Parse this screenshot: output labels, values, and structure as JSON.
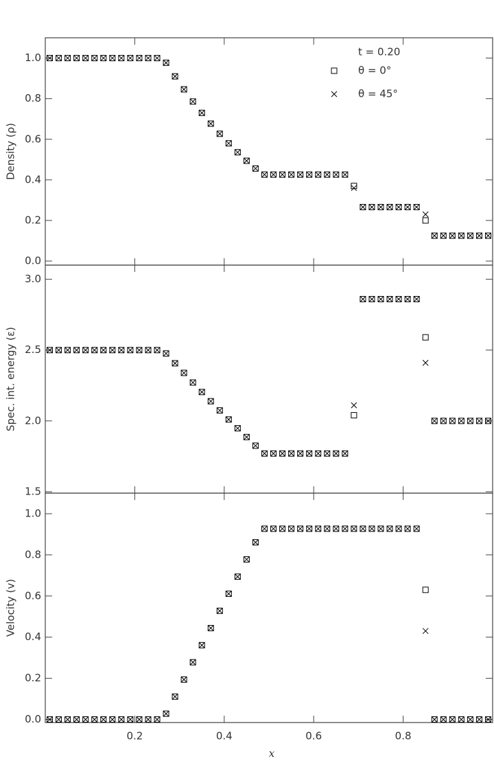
{
  "chart_data": [
    {
      "type": "scatter",
      "ylabel": "Density (ρ)",
      "annotation": "t = 0.20",
      "xlim": [
        0,
        1
      ],
      "xticks": [
        0.2,
        0.4,
        0.6,
        0.8
      ],
      "ylim": [
        -0.02,
        1.1
      ],
      "yticks": [
        {
          "value": 0,
          "label": "0.0"
        },
        0.2,
        0.4,
        0.6,
        0.8,
        {
          "value": 1,
          "label": "1.0"
        }
      ],
      "x": [
        0.01,
        0.03,
        0.05,
        0.07,
        0.09,
        0.11,
        0.13,
        0.15,
        0.17,
        0.19,
        0.21,
        0.23,
        0.25,
        0.27,
        0.29,
        0.31,
        0.33,
        0.35,
        0.37,
        0.39,
        0.41,
        0.43,
        0.45,
        0.47,
        0.49,
        0.51,
        0.53,
        0.55,
        0.57,
        0.59,
        0.61,
        0.63,
        0.65,
        0.67,
        0.69,
        0.71,
        0.73,
        0.75,
        0.77,
        0.79,
        0.81,
        0.83,
        0.85,
        0.87,
        0.89,
        0.91,
        0.93,
        0.95,
        0.97,
        0.99
      ],
      "series": [
        {
          "name": "θ = 0°",
          "color": "#000000",
          "marker": "square",
          "values": [
            1,
            1,
            1,
            1,
            1,
            1,
            1,
            1,
            1,
            1,
            1,
            1,
            1,
            0.977,
            0.91,
            0.846,
            0.786,
            0.73,
            0.677,
            0.627,
            0.58,
            0.536,
            0.494,
            0.456,
            0.426,
            0.426,
            0.426,
            0.426,
            0.426,
            0.426,
            0.426,
            0.426,
            0.426,
            0.426,
            0.37,
            0.266,
            0.266,
            0.266,
            0.266,
            0.266,
            0.266,
            0.266,
            0.2,
            0.125,
            0.125,
            0.125,
            0.125,
            0.125,
            0.125,
            0.125
          ]
        },
        {
          "name": "θ = 45°",
          "color": "#000000",
          "marker": "cross",
          "values": [
            1,
            1,
            1,
            1,
            1,
            1,
            1,
            1,
            1,
            1,
            1,
            1,
            1,
            0.977,
            0.91,
            0.846,
            0.786,
            0.73,
            0.677,
            0.627,
            0.58,
            0.536,
            0.494,
            0.456,
            0.426,
            0.426,
            0.426,
            0.426,
            0.426,
            0.426,
            0.426,
            0.426,
            0.426,
            0.426,
            0.36,
            0.266,
            0.266,
            0.266,
            0.266,
            0.266,
            0.266,
            0.266,
            0.23,
            0.125,
            0.125,
            0.125,
            0.125,
            0.125,
            0.125,
            0.125
          ]
        }
      ]
    },
    {
      "type": "scatter",
      "ylabel": "Spec. int. energy (ε)",
      "xlim": [
        0,
        1
      ],
      "xticks": [
        0.2,
        0.4,
        0.6,
        0.8
      ],
      "ylim": [
        1.49,
        3.1
      ],
      "yticks": [
        1.5,
        {
          "value": 2,
          "label": "2.0"
        },
        2.5,
        {
          "value": 3,
          "label": "3.0"
        }
      ],
      "x": [
        0.01,
        0.03,
        0.05,
        0.07,
        0.09,
        0.11,
        0.13,
        0.15,
        0.17,
        0.19,
        0.21,
        0.23,
        0.25,
        0.27,
        0.29,
        0.31,
        0.33,
        0.35,
        0.37,
        0.39,
        0.41,
        0.43,
        0.45,
        0.47,
        0.49,
        0.51,
        0.53,
        0.55,
        0.57,
        0.59,
        0.61,
        0.63,
        0.65,
        0.67,
        0.69,
        0.71,
        0.73,
        0.75,
        0.77,
        0.79,
        0.81,
        0.83,
        0.85,
        0.87,
        0.89,
        0.91,
        0.93,
        0.95,
        0.97,
        0.99
      ],
      "series": [
        {
          "name": "θ = 0°",
          "color": "#000000",
          "marker": "square",
          "values": [
            2.5,
            2.5,
            2.5,
            2.5,
            2.5,
            2.5,
            2.5,
            2.5,
            2.5,
            2.5,
            2.5,
            2.5,
            2.5,
            2.476,
            2.407,
            2.339,
            2.271,
            2.204,
            2.139,
            2.074,
            2.01,
            1.948,
            1.886,
            1.825,
            1.77,
            1.77,
            1.77,
            1.77,
            1.77,
            1.77,
            1.77,
            1.77,
            1.77,
            1.77,
            2.04,
            2.86,
            2.86,
            2.86,
            2.86,
            2.86,
            2.86,
            2.86,
            2.59,
            2.0,
            2.0,
            2.0,
            2.0,
            2.0,
            2.0,
            2.0
          ]
        },
        {
          "name": "θ = 45°",
          "color": "#000000",
          "marker": "cross",
          "values": [
            2.5,
            2.5,
            2.5,
            2.5,
            2.5,
            2.5,
            2.5,
            2.5,
            2.5,
            2.5,
            2.5,
            2.5,
            2.5,
            2.476,
            2.407,
            2.339,
            2.271,
            2.204,
            2.139,
            2.074,
            2.01,
            1.948,
            1.886,
            1.825,
            1.77,
            1.77,
            1.77,
            1.77,
            1.77,
            1.77,
            1.77,
            1.77,
            1.77,
            1.77,
            2.11,
            2.86,
            2.86,
            2.86,
            2.86,
            2.86,
            2.86,
            2.86,
            2.41,
            2.0,
            2.0,
            2.0,
            2.0,
            2.0,
            2.0,
            2.0
          ]
        }
      ]
    },
    {
      "type": "scatter",
      "ylabel": "Velocity (v)",
      "xlabel": "x",
      "xlim": [
        0,
        1
      ],
      "xticks": [
        0.2,
        0.4,
        0.6,
        0.8
      ],
      "ylim": [
        -0.015,
        1.1
      ],
      "yticks": [
        {
          "value": 0,
          "label": "0.0"
        },
        0.2,
        0.4,
        0.6,
        0.8,
        {
          "value": 1,
          "label": "1.0"
        }
      ],
      "x": [
        0.01,
        0.03,
        0.05,
        0.07,
        0.09,
        0.11,
        0.13,
        0.15,
        0.17,
        0.19,
        0.21,
        0.23,
        0.25,
        0.27,
        0.29,
        0.31,
        0.33,
        0.35,
        0.37,
        0.39,
        0.41,
        0.43,
        0.45,
        0.47,
        0.49,
        0.51,
        0.53,
        0.55,
        0.57,
        0.59,
        0.61,
        0.63,
        0.65,
        0.67,
        0.69,
        0.71,
        0.73,
        0.75,
        0.77,
        0.79,
        0.81,
        0.83,
        0.85,
        0.87,
        0.89,
        0.91,
        0.93,
        0.95,
        0.97,
        0.99
      ],
      "series": [
        {
          "name": "θ = 0°",
          "color": "#000000",
          "marker": "square",
          "values": [
            0,
            0,
            0,
            0,
            0,
            0,
            0,
            0,
            0,
            0,
            0,
            0,
            0,
            0.028,
            0.111,
            0.194,
            0.278,
            0.361,
            0.444,
            0.528,
            0.611,
            0.694,
            0.778,
            0.861,
            0.927,
            0.927,
            0.927,
            0.927,
            0.927,
            0.927,
            0.927,
            0.927,
            0.927,
            0.927,
            0.927,
            0.927,
            0.927,
            0.927,
            0.927,
            0.927,
            0.927,
            0.927,
            0.63,
            0,
            0,
            0,
            0,
            0,
            0,
            0
          ]
        },
        {
          "name": "θ = 45°",
          "color": "#000000",
          "marker": "cross",
          "values": [
            0,
            0,
            0,
            0,
            0,
            0,
            0,
            0,
            0,
            0,
            0,
            0,
            0,
            0.028,
            0.111,
            0.194,
            0.278,
            0.361,
            0.444,
            0.528,
            0.611,
            0.694,
            0.778,
            0.861,
            0.927,
            0.927,
            0.927,
            0.927,
            0.927,
            0.927,
            0.927,
            0.927,
            0.927,
            0.927,
            0.927,
            0.927,
            0.927,
            0.927,
            0.927,
            0.927,
            0.927,
            0.927,
            0.43,
            0,
            0,
            0,
            0,
            0,
            0,
            0
          ]
        }
      ]
    }
  ]
}
